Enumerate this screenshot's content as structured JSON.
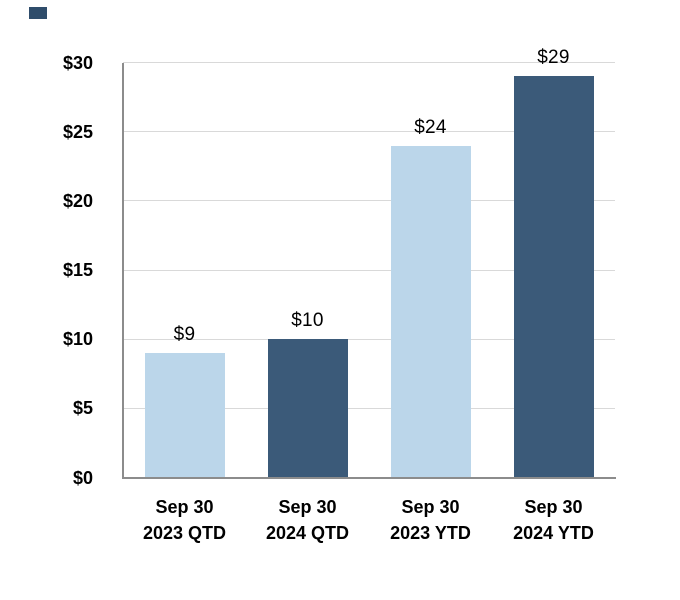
{
  "page": {
    "background_color": "#FFFFFF"
  },
  "corner_mark": {
    "color": "#2F4D6B"
  },
  "chart_data": {
    "type": "bar",
    "title": "",
    "xlabel": "",
    "ylabel": "",
    "categories": [
      "Sep 30 2023 QTD",
      "Sep 30 2024 QTD",
      "Sep 30 2023 YTD",
      "Sep 30 2024 YTD"
    ],
    "category_lines": [
      [
        "Sep 30",
        "2023 QTD"
      ],
      [
        "Sep 30",
        "2024 QTD"
      ],
      [
        "Sep 30",
        "2023 YTD"
      ],
      [
        "Sep 30",
        "2024 YTD"
      ]
    ],
    "values": [
      9,
      10,
      24,
      29
    ],
    "value_labels": [
      "$9",
      "$10",
      "$24",
      "$29"
    ],
    "bar_colors": [
      "#BBD6EA",
      "#3B5A79",
      "#BBD6EA",
      "#3B5A79"
    ],
    "series_palette": {
      "light_blue": "#BBD6EA",
      "dark_navy": "#3B5A79"
    },
    "y_axis": {
      "min": 0,
      "max": 30,
      "ticks": [
        0,
        5,
        10,
        15,
        20,
        25,
        30
      ],
      "tick_labels": [
        "$0",
        "$5",
        "$10",
        "$15",
        "$20",
        "$25",
        "$30"
      ]
    },
    "grid": true,
    "grid_color": "#D9D9D9",
    "axis_color": "#8C8C8C",
    "text_color": "#000000",
    "legend": "none"
  }
}
